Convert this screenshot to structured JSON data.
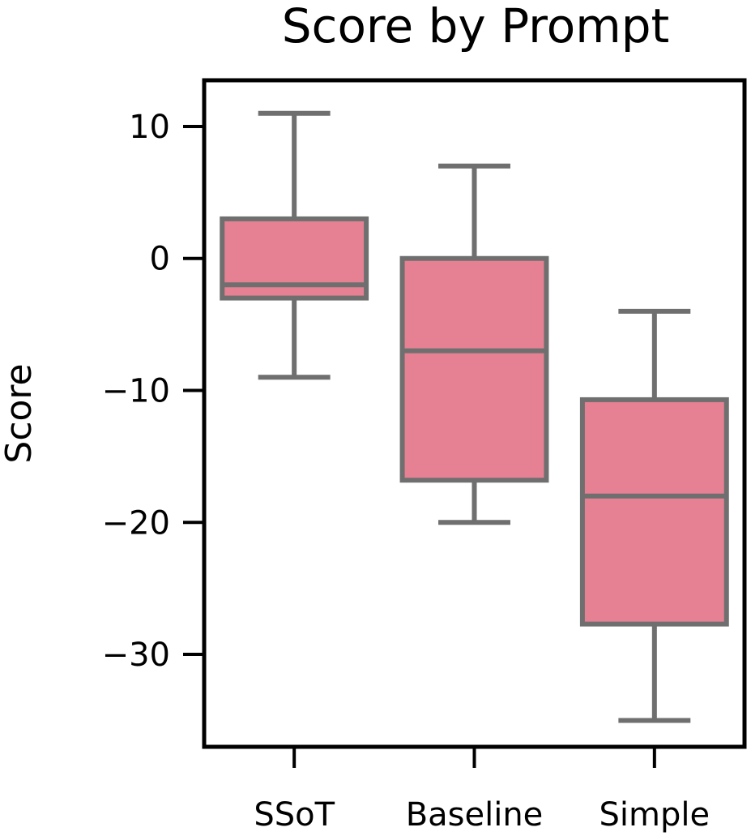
{
  "chart_data": {
    "type": "box",
    "title": "Score by Prompt",
    "xlabel": "",
    "ylabel": "Score",
    "categories": [
      "SSoT",
      "Baseline",
      "Simple"
    ],
    "boxes": [
      {
        "category": "SSoT",
        "whisker_low": -9,
        "q1": -3,
        "median": -2,
        "q3": 3,
        "whisker_high": 11
      },
      {
        "category": "Baseline",
        "whisker_low": -20,
        "q1": -16.8,
        "median": -7,
        "q3": 0,
        "whisker_high": 7
      },
      {
        "category": "Simple",
        "whisker_low": -35,
        "q1": -27.7,
        "median": -18,
        "q3": -10.7,
        "whisker_high": -4
      }
    ],
    "yticks": [
      10,
      0,
      -10,
      -20,
      -30
    ],
    "ytick_labels": [
      "10",
      "0",
      "−10",
      "−20",
      "−30"
    ],
    "ylim": [
      -37,
      13.5
    ],
    "grid": false,
    "colors": {
      "box_fill": "#e68093",
      "box_edge": "#6f6f6f",
      "axes": "#000000"
    }
  }
}
